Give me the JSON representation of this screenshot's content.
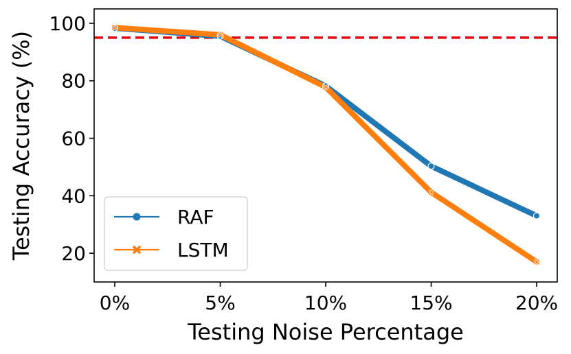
{
  "chart_data": {
    "type": "line",
    "title": "",
    "xlabel": "Testing Noise Percentage",
    "ylabel": "Testing Accuracy (%)",
    "categories": [
      "0%",
      "5%",
      "10%",
      "15%",
      "20%"
    ],
    "ylim": [
      10,
      105
    ],
    "yticks": [
      20,
      40,
      60,
      80,
      100
    ],
    "reference_line": {
      "y": 95,
      "color": "#e8000b",
      "style": "dashed"
    },
    "legend_position": "lower-left",
    "series": [
      {
        "name": "RAF",
        "color": "#1f77b4",
        "marker": "circle",
        "values": [
          98.3,
          95.5,
          78.2,
          50.3,
          33.0
        ]
      },
      {
        "name": "LSTM",
        "color": "#ff7f0e",
        "marker": "x",
        "values": [
          98.5,
          96.0,
          77.8,
          41.2,
          17.0
        ]
      }
    ]
  }
}
